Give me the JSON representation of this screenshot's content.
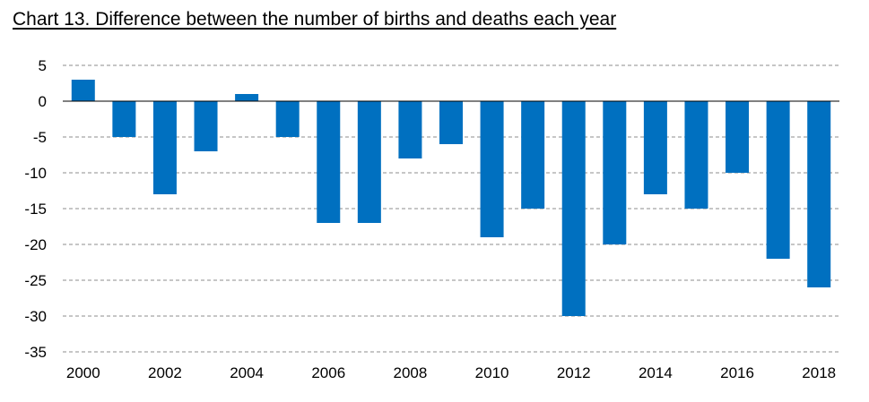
{
  "title": "Chart 13. Difference between the number of births and deaths each year",
  "chart_data": {
    "type": "bar",
    "categories": [
      "2000",
      "2001",
      "2002",
      "2003",
      "2004",
      "2005",
      "2006",
      "2007",
      "2008",
      "2009",
      "2010",
      "2011",
      "2012",
      "2013",
      "2014",
      "2015",
      "2016",
      "2017",
      "2018"
    ],
    "values": [
      3,
      -5,
      -13,
      -7,
      1,
      -5,
      -17,
      -17,
      -8,
      -6,
      -19,
      -15,
      -30,
      -20,
      -13,
      -15,
      -10,
      -22,
      -26
    ],
    "x_tick_labels": [
      "2000",
      "2002",
      "2004",
      "2006",
      "2008",
      "2010",
      "2012",
      "2014",
      "2016",
      "2018"
    ],
    "y_ticks": [
      5,
      0,
      -5,
      -10,
      -15,
      -20,
      -25,
      -30,
      -35
    ],
    "ylim": [
      -35,
      5
    ],
    "grid": true,
    "bar_color": "#0070C0",
    "xlabel": "",
    "ylabel": ""
  }
}
